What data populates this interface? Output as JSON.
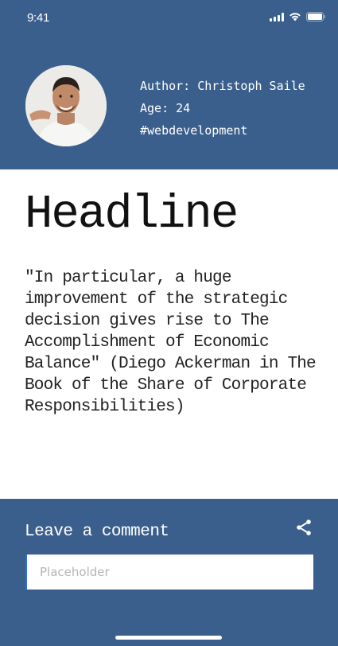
{
  "status_bar": {
    "time": "9:41"
  },
  "profile": {
    "author_line": "Author: Christoph Saile",
    "age_line": "Age: 24",
    "tag": "#webdevelopment"
  },
  "article": {
    "headline": "Headline",
    "quote": "\"In particular, a huge improvement of the strategic decision gives rise to The Accomplishment of Economic Balance\" (Diego Ackerman in The Book of the Share of Corporate Responsibilities)"
  },
  "comments": {
    "title": "Leave a comment",
    "placeholder": "Placeholder",
    "value": ""
  },
  "colors": {
    "primary": "#3b5f8c",
    "background": "#ffffff",
    "text": "#111111"
  },
  "icons": [
    "signal-icon",
    "wifi-icon",
    "battery-icon",
    "share-icon"
  ]
}
